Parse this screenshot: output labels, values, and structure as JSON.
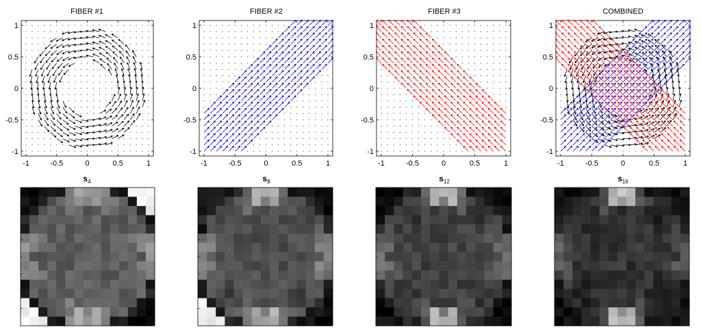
{
  "chart_data": [
    {
      "type": "quiver",
      "title": "FIBER #1",
      "field": "circular",
      "color": "#000000",
      "xlim": [
        -1,
        1
      ],
      "ylim": [
        -1,
        1
      ],
      "xticks": [
        "-1",
        "-0.5",
        "0",
        "0.5",
        "1"
      ],
      "yticks": [
        "1",
        "0.5",
        "0",
        "-0.5",
        "-1"
      ],
      "grid": false
    },
    {
      "type": "quiver",
      "title": "FIBER #2",
      "field": "diagonal-up",
      "color": "#0000ff",
      "xlim": [
        -1,
        1
      ],
      "ylim": [
        -1,
        1
      ],
      "xticks": [
        "-1",
        "-0.5",
        "0",
        "0.5",
        "1"
      ],
      "yticks": [
        "1",
        "0.5",
        "0",
        "-0.5",
        "-1"
      ],
      "grid": false
    },
    {
      "type": "quiver",
      "title": "FIBER #3",
      "field": "diagonal-down",
      "color": "#ff0000",
      "xlim": [
        -1,
        1
      ],
      "ylim": [
        -1,
        1
      ],
      "xticks": [
        "-1",
        "-0.5",
        "0",
        "0.5",
        "1"
      ],
      "yticks": [
        "1",
        "0.5",
        "0",
        "-0.5",
        "-1"
      ],
      "grid": false
    },
    {
      "type": "quiver",
      "title": "COMBINED",
      "field": "combined",
      "colors": [
        "#000000",
        "#0000ff",
        "#ff0000"
      ],
      "xlim": [
        -1,
        1
      ],
      "ylim": [
        -1,
        1
      ],
      "xticks": [
        "-1",
        "-0.5",
        "0",
        "0.5",
        "1"
      ],
      "yticks": [
        "1",
        "0.5",
        "0",
        "-0.5",
        "-1"
      ],
      "grid": false
    },
    {
      "type": "heatmap",
      "title_main": "s",
      "title_sub": "4",
      "colormap": "gray",
      "variant": 4
    },
    {
      "type": "heatmap",
      "title_main": "s",
      "title_sub": "8",
      "colormap": "gray",
      "variant": 8
    },
    {
      "type": "heatmap",
      "title_main": "s",
      "title_sub": "12",
      "colormap": "gray",
      "variant": 12
    },
    {
      "type": "heatmap",
      "title_main": "s",
      "title_sub": "16",
      "colormap": "gray",
      "variant": 16
    }
  ]
}
